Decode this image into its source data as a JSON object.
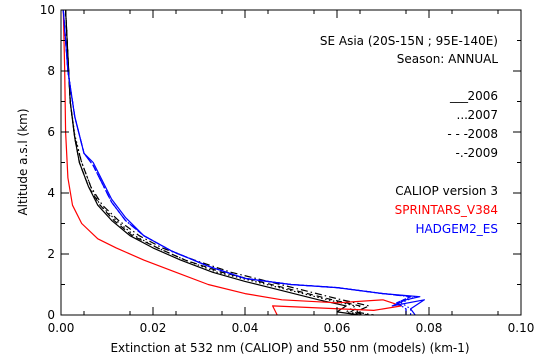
{
  "chart_data": {
    "type": "line",
    "title": "",
    "xlabel": "Extinction at 532 nm (CALIOP) and 550 nm (models) (km-1)",
    "ylabel": "Altitude a.s.l (km)",
    "xlim": [
      0.0,
      0.1
    ],
    "ylim": [
      0,
      10
    ],
    "grid": false,
    "x_ticks": [
      0.0,
      0.02,
      0.04,
      0.06,
      0.08,
      0.1
    ],
    "x_tick_labels": [
      "0.00",
      "0.02",
      "0.04",
      "0.06",
      "0.08",
      "0.10"
    ],
    "y_ticks": [
      0,
      2,
      4,
      6,
      8,
      10
    ],
    "y_tick_labels": [
      "0",
      "2",
      "4",
      "6",
      "8",
      "10"
    ],
    "annotations": {
      "region": "SE Asia (20S-15N ; 95E-140E)",
      "season": "Season: ANNUAL"
    },
    "legend": {
      "placement": "right",
      "years": [
        {
          "style_text": "___",
          "year": "2006",
          "dash": "none"
        },
        {
          "style_text": "...",
          "year": "2007",
          "dash": "dot"
        },
        {
          "style_text": "- - -",
          "year": "2008",
          "dash": "dash"
        },
        {
          "style_text": "-.-",
          "year": "2009",
          "dash": "dashdot"
        }
      ],
      "datasets": [
        {
          "name": "CALIOP version 3",
          "color": "#000000"
        },
        {
          "name": "SPRINTARS_V384",
          "color": "#ff0000"
        },
        {
          "name": "HADGEM2_ES",
          "color": "#0000ff"
        }
      ]
    },
    "series": [
      {
        "dataset": "CALIOP version 3",
        "year": "2006",
        "color": "#000000",
        "dash": "none",
        "points": [
          [
            0.001,
            10.0
          ],
          [
            0.0015,
            8.5
          ],
          [
            0.002,
            7.0
          ],
          [
            0.003,
            5.8
          ],
          [
            0.004,
            5.0
          ],
          [
            0.006,
            4.2
          ],
          [
            0.008,
            3.6
          ],
          [
            0.011,
            3.1
          ],
          [
            0.015,
            2.6
          ],
          [
            0.02,
            2.2
          ],
          [
            0.026,
            1.8
          ],
          [
            0.033,
            1.4
          ],
          [
            0.04,
            1.1
          ],
          [
            0.048,
            0.8
          ],
          [
            0.056,
            0.5
          ],
          [
            0.062,
            0.3
          ],
          [
            0.06,
            0.1
          ],
          [
            0.065,
            0.0
          ]
        ]
      },
      {
        "dataset": "CALIOP version 3",
        "year": "2007",
        "color": "#000000",
        "dash": "dot",
        "points": [
          [
            0.001,
            10.0
          ],
          [
            0.0015,
            8.5
          ],
          [
            0.002,
            7.0
          ],
          [
            0.003,
            5.9
          ],
          [
            0.0045,
            5.0
          ],
          [
            0.0065,
            4.2
          ],
          [
            0.0085,
            3.6
          ],
          [
            0.012,
            3.1
          ],
          [
            0.016,
            2.6
          ],
          [
            0.021,
            2.2
          ],
          [
            0.027,
            1.8
          ],
          [
            0.034,
            1.4
          ],
          [
            0.042,
            1.1
          ],
          [
            0.05,
            0.8
          ],
          [
            0.058,
            0.5
          ],
          [
            0.064,
            0.3
          ],
          [
            0.062,
            0.1
          ],
          [
            0.066,
            0.0
          ]
        ]
      },
      {
        "dataset": "CALIOP version 3",
        "year": "2008",
        "color": "#000000",
        "dash": "dash",
        "points": [
          [
            0.001,
            10.0
          ],
          [
            0.0015,
            8.5
          ],
          [
            0.002,
            7.0
          ],
          [
            0.003,
            5.8
          ],
          [
            0.004,
            5.0
          ],
          [
            0.006,
            4.2
          ],
          [
            0.0085,
            3.6
          ],
          [
            0.0115,
            3.1
          ],
          [
            0.0155,
            2.6
          ],
          [
            0.021,
            2.2
          ],
          [
            0.027,
            1.8
          ],
          [
            0.035,
            1.4
          ],
          [
            0.043,
            1.1
          ],
          [
            0.051,
            0.8
          ],
          [
            0.059,
            0.5
          ],
          [
            0.065,
            0.3
          ],
          [
            0.063,
            0.1
          ],
          [
            0.067,
            0.0
          ]
        ]
      },
      {
        "dataset": "CALIOP version 3",
        "year": "2009",
        "color": "#000000",
        "dash": "dashdot",
        "points": [
          [
            0.001,
            10.0
          ],
          [
            0.0015,
            8.5
          ],
          [
            0.002,
            7.0
          ],
          [
            0.003,
            5.8
          ],
          [
            0.0045,
            5.0
          ],
          [
            0.0065,
            4.2
          ],
          [
            0.009,
            3.6
          ],
          [
            0.0125,
            3.1
          ],
          [
            0.017,
            2.6
          ],
          [
            0.022,
            2.2
          ],
          [
            0.029,
            1.8
          ],
          [
            0.037,
            1.4
          ],
          [
            0.045,
            1.1
          ],
          [
            0.053,
            0.8
          ],
          [
            0.061,
            0.5
          ],
          [
            0.067,
            0.3
          ],
          [
            0.064,
            0.1
          ],
          [
            0.068,
            0.0
          ]
        ]
      },
      {
        "dataset": "SPRINTARS_V384",
        "year": "2006",
        "color": "#ff0000",
        "dash": "none",
        "points": [
          [
            0.0005,
            10.0
          ],
          [
            0.0008,
            8.0
          ],
          [
            0.001,
            6.0
          ],
          [
            0.0015,
            4.5
          ],
          [
            0.0025,
            3.6
          ],
          [
            0.0045,
            3.0
          ],
          [
            0.008,
            2.5
          ],
          [
            0.012,
            2.2
          ],
          [
            0.018,
            1.8
          ],
          [
            0.025,
            1.4
          ],
          [
            0.032,
            1.0
          ],
          [
            0.04,
            0.7
          ],
          [
            0.048,
            0.5
          ],
          [
            0.06,
            0.4
          ],
          [
            0.07,
            0.5
          ],
          [
            0.074,
            0.3
          ],
          [
            0.068,
            0.15
          ],
          [
            0.046,
            0.3
          ],
          [
            0.047,
            0.0
          ]
        ]
      },
      {
        "dataset": "HADGEM2_ES",
        "year": "2006",
        "color": "#0000ff",
        "dash": "none",
        "points": [
          [
            0.0005,
            10.0
          ],
          [
            0.0015,
            8.0
          ],
          [
            0.003,
            6.5
          ],
          [
            0.005,
            5.3
          ],
          [
            0.007,
            5.0
          ],
          [
            0.009,
            4.4
          ],
          [
            0.011,
            3.8
          ],
          [
            0.014,
            3.2
          ],
          [
            0.018,
            2.6
          ],
          [
            0.024,
            2.1
          ],
          [
            0.032,
            1.6
          ],
          [
            0.04,
            1.2
          ],
          [
            0.05,
            1.0
          ],
          [
            0.06,
            0.9
          ],
          [
            0.07,
            0.7
          ],
          [
            0.078,
            0.6
          ],
          [
            0.075,
            0.5
          ],
          [
            0.072,
            0.3
          ],
          [
            0.079,
            0.5
          ],
          [
            0.076,
            0.2
          ],
          [
            0.077,
            0.0
          ]
        ]
      },
      {
        "dataset": "HADGEM2_ES",
        "year": "2007",
        "color": "#0000ff",
        "dash": "dot",
        "points": [
          [
            0.0005,
            10.0
          ],
          [
            0.0015,
            8.0
          ],
          [
            0.003,
            6.5
          ],
          [
            0.005,
            5.3
          ],
          [
            0.007,
            4.9
          ],
          [
            0.009,
            4.3
          ],
          [
            0.011,
            3.7
          ],
          [
            0.014,
            3.1
          ],
          [
            0.018,
            2.6
          ],
          [
            0.024,
            2.1
          ],
          [
            0.032,
            1.6
          ],
          [
            0.04,
            1.2
          ],
          [
            0.05,
            1.0
          ],
          [
            0.06,
            0.9
          ],
          [
            0.07,
            0.7
          ],
          [
            0.077,
            0.6
          ],
          [
            0.074,
            0.4
          ],
          [
            0.076,
            0.2
          ],
          [
            0.076,
            0.0
          ]
        ]
      },
      {
        "dataset": "HADGEM2_ES",
        "year": "2008",
        "color": "#0000ff",
        "dash": "dash",
        "points": [
          [
            0.0005,
            10.0
          ],
          [
            0.0015,
            8.0
          ],
          [
            0.003,
            6.5
          ],
          [
            0.005,
            5.3
          ],
          [
            0.007,
            4.9
          ],
          [
            0.009,
            4.3
          ],
          [
            0.011,
            3.7
          ],
          [
            0.014,
            3.1
          ],
          [
            0.018,
            2.6
          ],
          [
            0.024,
            2.1
          ],
          [
            0.032,
            1.6
          ],
          [
            0.04,
            1.2
          ],
          [
            0.05,
            1.0
          ],
          [
            0.06,
            0.9
          ],
          [
            0.07,
            0.7
          ],
          [
            0.076,
            0.6
          ],
          [
            0.073,
            0.4
          ],
          [
            0.075,
            0.2
          ],
          [
            0.075,
            0.0
          ]
        ]
      },
      {
        "dataset": "HADGEM2_ES",
        "year": "2009",
        "color": "#0000ff",
        "dash": "dashdot",
        "points": [
          [
            0.0005,
            10.0
          ],
          [
            0.0015,
            8.0
          ],
          [
            0.003,
            6.5
          ],
          [
            0.005,
            5.3
          ],
          [
            0.007,
            4.9
          ],
          [
            0.009,
            4.3
          ],
          [
            0.011,
            3.7
          ],
          [
            0.014,
            3.1
          ],
          [
            0.018,
            2.6
          ],
          [
            0.024,
            2.1
          ],
          [
            0.032,
            1.6
          ],
          [
            0.04,
            1.2
          ],
          [
            0.05,
            1.0
          ],
          [
            0.06,
            0.9
          ],
          [
            0.07,
            0.7
          ],
          [
            0.076,
            0.6
          ],
          [
            0.073,
            0.4
          ],
          [
            0.075,
            0.2
          ],
          [
            0.075,
            0.0
          ]
        ]
      }
    ]
  }
}
